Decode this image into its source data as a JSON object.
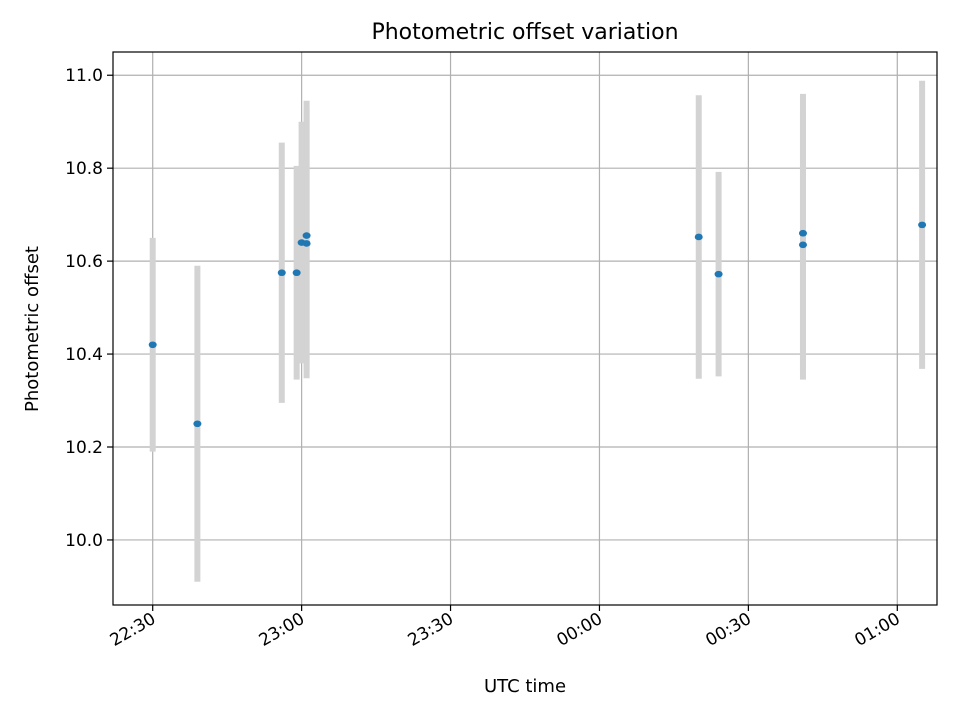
{
  "chart_data": {
    "type": "scatter",
    "title": "Photometric offset variation",
    "xlabel": "UTC time",
    "ylabel": "Photometric offset",
    "x_ticks": [
      "22:30",
      "23:00",
      "23:30",
      "00:00",
      "00:30",
      "01:00"
    ],
    "y_ticks": [
      "10.0",
      "10.2",
      "10.4",
      "10.6",
      "10.8",
      "11.0"
    ],
    "xlim": [
      "22:22",
      "01:08"
    ],
    "ylim": [
      9.86,
      11.05
    ],
    "grid": true,
    "colors": {
      "point": "#1f77b4",
      "errorbar": "#d3d3d3",
      "grid": "#b0b0b0"
    },
    "points": [
      {
        "x": "22:30",
        "y": 10.42,
        "err": 0.23
      },
      {
        "x": "22:39",
        "y": 10.25,
        "err": 0.34
      },
      {
        "x": "22:56",
        "y": 10.575,
        "err": 0.28
      },
      {
        "x": "22:59",
        "y": 10.575,
        "err": 0.23
      },
      {
        "x": "23:00",
        "y": 10.64,
        "err": 0.26
      },
      {
        "x": "23:01",
        "y": 10.655,
        "err": 0.29
      },
      {
        "x": "23:01",
        "y": 10.638,
        "err": 0.29
      },
      {
        "x": "00:20",
        "y": 10.652,
        "err": 0.305
      },
      {
        "x": "00:24",
        "y": 10.572,
        "err": 0.22
      },
      {
        "x": "00:41",
        "y": 10.635,
        "err": 0.29
      },
      {
        "x": "00:41",
        "y": 10.66,
        "err": 0.3
      },
      {
        "x": "01:05",
        "y": 10.678,
        "err": 0.31
      }
    ]
  }
}
